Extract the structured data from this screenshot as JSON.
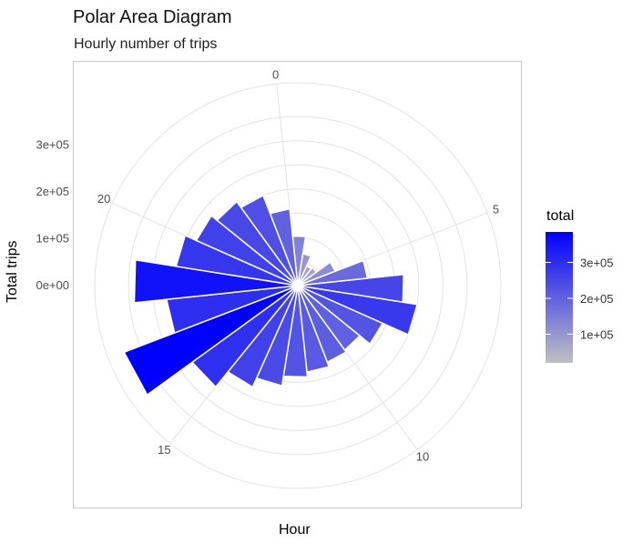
{
  "chart_data": {
    "type": "polar-area",
    "title": "Polar Area Diagram",
    "subtitle": "Hourly number of trips",
    "xlabel": "Hour",
    "ylabel": "Total trips",
    "theta_ticks": [
      "0",
      "5",
      "10",
      "15",
      "20"
    ],
    "r_ticks": [
      "0e+00",
      "1e+05",
      "2e+05",
      "3e+05"
    ],
    "r_tick_values": [
      0,
      100000,
      200000,
      300000
    ],
    "r_max": 420000,
    "hours": [
      0,
      1,
      2,
      3,
      4,
      5,
      6,
      7,
      8,
      9,
      10,
      11,
      12,
      13,
      14,
      15,
      16,
      17,
      18,
      19,
      20,
      21,
      22,
      23
    ],
    "values": [
      103000,
      67000,
      45000,
      48000,
      83000,
      145000,
      220000,
      250000,
      192000,
      165000,
      170000,
      180000,
      190000,
      210000,
      230000,
      270000,
      385000,
      273000,
      340000,
      255000,
      230000,
      215000,
      200000,
      160000
    ],
    "legend": {
      "title": "total",
      "ticks": [
        "1e+05",
        "2e+05",
        "3e+05"
      ],
      "tick_values": [
        100000,
        200000,
        300000
      ],
      "min": 20000,
      "max": 385000,
      "low_color": "#c0c0c0",
      "high_color": "#0000ff"
    },
    "grid": true
  }
}
